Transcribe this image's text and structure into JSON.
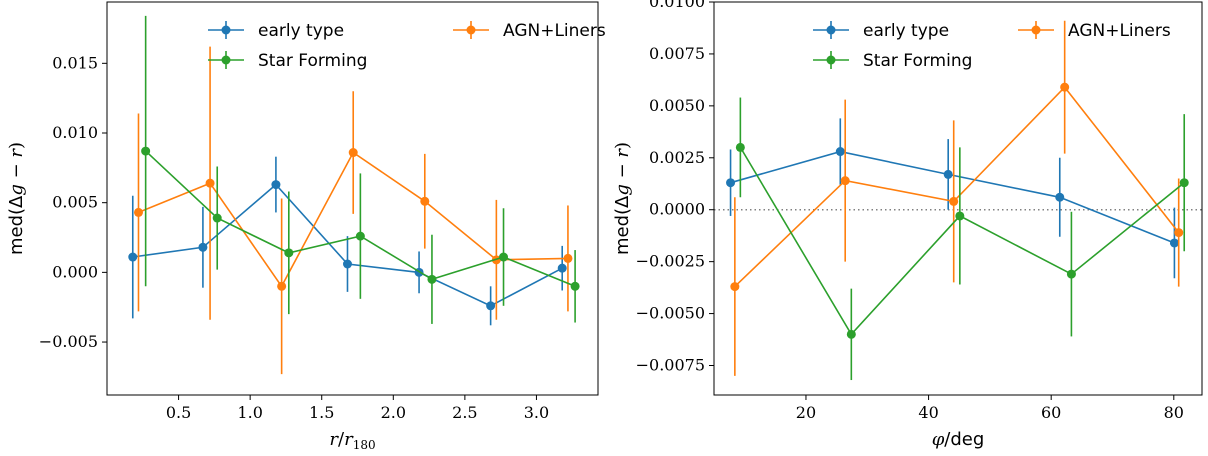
{
  "chart_data": [
    {
      "type": "line",
      "subtype": "errorbar",
      "xlabel": "r/r180",
      "ylabel": "med(Δg − r)",
      "xlim": [
        0.0,
        3.43
      ],
      "ylim": [
        -0.0088,
        0.0194
      ],
      "x_ticks": [
        0.5,
        1.0,
        1.5,
        2.0,
        2.5,
        3.0
      ],
      "x_tick_labels": [
        "0.5",
        "1.0",
        "1.5",
        "2.0",
        "2.5",
        "3.0"
      ],
      "y_ticks": [
        -0.005,
        0.0,
        0.005,
        0.01,
        0.015
      ],
      "y_tick_labels": [
        "−0.005",
        "0.000",
        "0.005",
        "0.010",
        "0.015"
      ],
      "reference_line": null,
      "legend": {
        "placement": "top",
        "columns": 2
      },
      "series": [
        {
          "name": "early type",
          "color": "#1f77b4",
          "x": [
            0.18,
            0.67,
            1.18,
            1.68,
            2.18,
            2.68,
            3.18
          ],
          "y": [
            0.0011,
            0.0018,
            0.0063,
            0.0006,
            0.0,
            -0.0024,
            0.0003
          ],
          "yerr": [
            0.0044,
            0.0029,
            0.002,
            0.002,
            0.0015,
            0.0014,
            0.0016
          ]
        },
        {
          "name": "AGN+Liners",
          "color": "#ff7f0e",
          "x": [
            0.22,
            0.72,
            1.22,
            1.72,
            2.22,
            2.72,
            3.22
          ],
          "y": [
            0.0043,
            0.0064,
            -0.001,
            0.0086,
            0.0051,
            0.0009,
            0.001
          ],
          "yerr": [
            0.0071,
            0.0098,
            0.0063,
            0.0044,
            0.0034,
            0.0043,
            0.0038
          ]
        },
        {
          "name": "Star Forming",
          "color": "#2ca02c",
          "x": [
            0.27,
            0.77,
            1.27,
            1.77,
            2.27,
            2.77,
            3.27
          ],
          "y": [
            0.0087,
            0.0039,
            0.0014,
            0.0026,
            -0.0005,
            0.0011,
            -0.001
          ],
          "yerr": [
            0.0097,
            0.0037,
            0.0044,
            0.0045,
            0.0032,
            0.0035,
            0.0026
          ]
        }
      ]
    },
    {
      "type": "line",
      "subtype": "errorbar",
      "xlabel": "φ/deg",
      "ylabel": "med(Δg − r)",
      "xlim": [
        5.0,
        84.6
      ],
      "ylim": [
        -0.00892,
        0.01
      ],
      "x_ticks": [
        20,
        40,
        60,
        80
      ],
      "x_tick_labels": [
        "20",
        "40",
        "60",
        "80"
      ],
      "y_ticks": [
        -0.0075,
        -0.005,
        -0.0025,
        0.0,
        0.0025,
        0.005,
        0.0075,
        0.01
      ],
      "y_tick_labels": [
        "−0.0075",
        "−0.0050",
        "−0.0025",
        "0.0000",
        "0.0025",
        "0.0050",
        "0.0075",
        "0.0100"
      ],
      "reference_line": {
        "y": 0.0,
        "style": "dotted",
        "color": "#808080"
      },
      "legend": {
        "placement": "top",
        "columns": 2
      },
      "series": [
        {
          "name": "early type",
          "color": "#1f77b4",
          "x": [
            7.7,
            25.6,
            43.2,
            61.4,
            80.1
          ],
          "y": [
            0.0013,
            0.0028,
            0.0017,
            0.0006,
            -0.0016
          ],
          "yerr": [
            0.0016,
            0.0016,
            0.0017,
            0.0019,
            0.0017
          ]
        },
        {
          "name": "AGN+Liners",
          "color": "#ff7f0e",
          "x": [
            8.4,
            26.4,
            44.1,
            62.2,
            80.8
          ],
          "y": [
            -0.0037,
            0.0014,
            0.0004,
            0.0059,
            -0.0011
          ],
          "yerr": [
            0.0043,
            0.0039,
            0.0039,
            0.0032,
            0.0026
          ]
        },
        {
          "name": "Star Forming",
          "color": "#2ca02c",
          "x": [
            9.3,
            27.4,
            45.1,
            63.3,
            81.7
          ],
          "y": [
            0.003,
            -0.006,
            -0.0003,
            -0.0031,
            0.0013
          ],
          "yerr": [
            0.0024,
            0.0022,
            0.0033,
            0.003,
            0.0033
          ]
        }
      ]
    }
  ]
}
